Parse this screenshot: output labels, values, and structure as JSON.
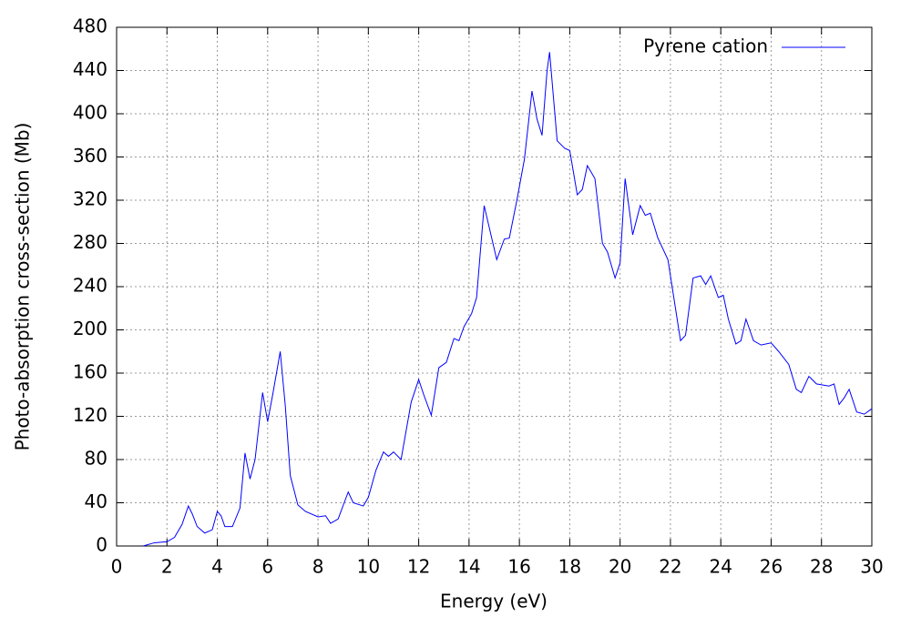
{
  "chart_data": {
    "type": "line",
    "xlabel": "Energy (eV)",
    "ylabel": "Photo-absorption cross-section (Mb)",
    "xlim": [
      0,
      30
    ],
    "ylim": [
      0,
      480
    ],
    "xticks": [
      0,
      2,
      4,
      6,
      8,
      10,
      12,
      14,
      16,
      18,
      20,
      22,
      24,
      26,
      28,
      30
    ],
    "yticks": [
      0,
      40,
      80,
      120,
      160,
      200,
      240,
      280,
      320,
      360,
      400,
      440,
      480
    ],
    "grid": true,
    "legend": "upper right",
    "x": [
      1.05,
      1.5,
      2.0,
      2.3,
      2.6,
      2.85,
      3.0,
      3.2,
      3.5,
      3.8,
      4.0,
      4.15,
      4.3,
      4.6,
      4.9,
      5.1,
      5.3,
      5.5,
      5.8,
      6.0,
      6.2,
      6.5,
      6.7,
      6.9,
      7.2,
      7.5,
      8.0,
      8.3,
      8.5,
      8.8,
      9.2,
      9.4,
      9.8,
      10.0,
      10.3,
      10.6,
      10.8,
      11.0,
      11.3,
      11.7,
      12.0,
      12.2,
      12.5,
      12.8,
      13.1,
      13.4,
      13.6,
      13.8,
      14.1,
      14.3,
      14.6,
      14.8,
      15.1,
      15.4,
      15.6,
      15.9,
      16.2,
      16.5,
      16.7,
      16.9,
      17.1,
      17.2,
      17.5,
      17.8,
      18.0,
      18.3,
      18.5,
      18.7,
      19.0,
      19.3,
      19.5,
      19.8,
      20.0,
      20.2,
      20.5,
      20.8,
      21.0,
      21.2,
      21.5,
      21.9,
      22.2,
      22.4,
      22.6,
      22.9,
      23.2,
      23.4,
      23.6,
      23.9,
      24.1,
      24.3,
      24.6,
      24.8,
      25.0,
      25.3,
      25.6,
      26.0,
      26.3,
      26.7,
      27.0,
      27.2,
      27.5,
      27.8,
      28.3,
      28.5,
      28.7,
      28.9,
      29.1,
      29.4,
      29.7,
      30.0
    ],
    "series": [
      {
        "name": "Pyrene cation",
        "color": "#0000ff",
        "values": [
          0,
          3,
          4,
          8,
          20,
          37,
          30,
          18,
          12,
          15,
          32,
          28,
          18,
          18,
          35,
          86,
          62,
          80,
          142,
          115,
          140,
          180,
          130,
          65,
          38,
          32,
          27,
          28,
          21,
          25,
          50,
          40,
          37,
          45,
          70,
          87,
          83,
          87,
          80,
          133,
          154,
          140,
          121,
          165,
          170,
          192,
          190,
          203,
          215,
          230,
          315,
          295,
          265,
          284,
          285,
          320,
          358,
          421,
          395,
          380,
          440,
          457,
          375,
          368,
          366,
          325,
          330,
          352,
          340,
          280,
          272,
          248,
          262,
          340,
          288,
          315,
          306,
          308,
          285,
          265,
          220,
          190,
          195,
          248,
          250,
          242,
          250,
          230,
          232,
          210,
          187,
          190,
          210,
          190,
          186,
          188,
          180,
          168,
          145,
          142,
          157,
          150,
          148,
          150,
          131,
          137,
          145,
          124,
          122,
          127
        ]
      }
    ]
  }
}
